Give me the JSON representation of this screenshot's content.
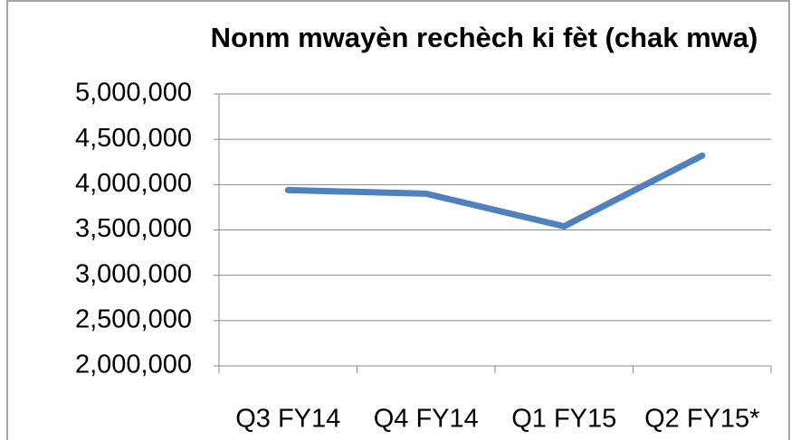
{
  "chart_data": {
    "type": "line",
    "title": "Nonm mwayèn rechèch ki fèt (chak mwa)",
    "categories": [
      "Q3 FY14",
      "Q4 FY14",
      "Q1 FY15",
      "Q2 FY15*"
    ],
    "series": [
      {
        "name": "Nonm mwayèn rechèch",
        "color": "#4f81bd",
        "values": [
          3940000,
          3900000,
          3540000,
          4320000
        ]
      }
    ],
    "ylim": [
      2000000,
      5000000
    ],
    "yticks": [
      {
        "value": 2000000,
        "label": "2,000,000"
      },
      {
        "value": 2500000,
        "label": "2,500,000"
      },
      {
        "value": 3000000,
        "label": "3,000,000"
      },
      {
        "value": 3500000,
        "label": "3,500,000"
      },
      {
        "value": 4000000,
        "label": "4,000,000"
      },
      {
        "value": 4500000,
        "label": "4,500,000"
      },
      {
        "value": 5000000,
        "label": "5,000,000"
      }
    ],
    "grid": true
  }
}
